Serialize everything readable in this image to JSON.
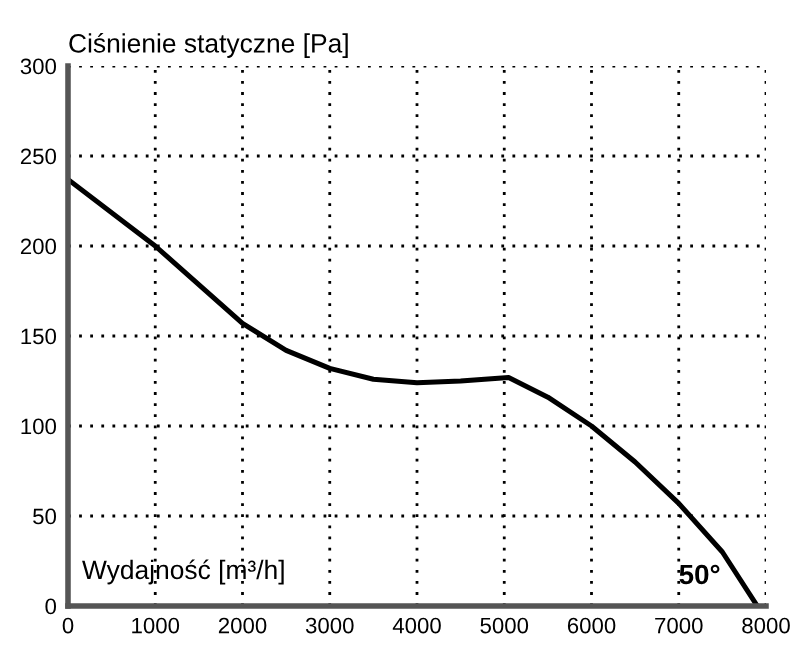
{
  "chart_data": {
    "type": "line",
    "ylabel": "Ciśnienie statyczne [Pa]",
    "xlabel": "Wydajność [m³/h]",
    "annotations": [
      "50°"
    ],
    "x": [
      0,
      1000,
      2000,
      2500,
      3000,
      3500,
      4000,
      4500,
      5050,
      5500,
      6000,
      6500,
      7000,
      7500,
      7900
    ],
    "series": [
      {
        "color": "#000000",
        "values": [
          237,
          200,
          157,
          142,
          132,
          126,
          124,
          125,
          127,
          116,
          100,
          80,
          57,
          30,
          0
        ]
      }
    ],
    "xlim": [
      0,
      8000
    ],
    "ylim": [
      0,
      300
    ],
    "xticks": [
      0,
      1000,
      2000,
      3000,
      4000,
      5000,
      6000,
      7000,
      8000
    ],
    "yticks": [
      0,
      50,
      100,
      150,
      200,
      250,
      300
    ],
    "grid": true,
    "marker": "none",
    "line_style": "solid",
    "legend": false
  }
}
